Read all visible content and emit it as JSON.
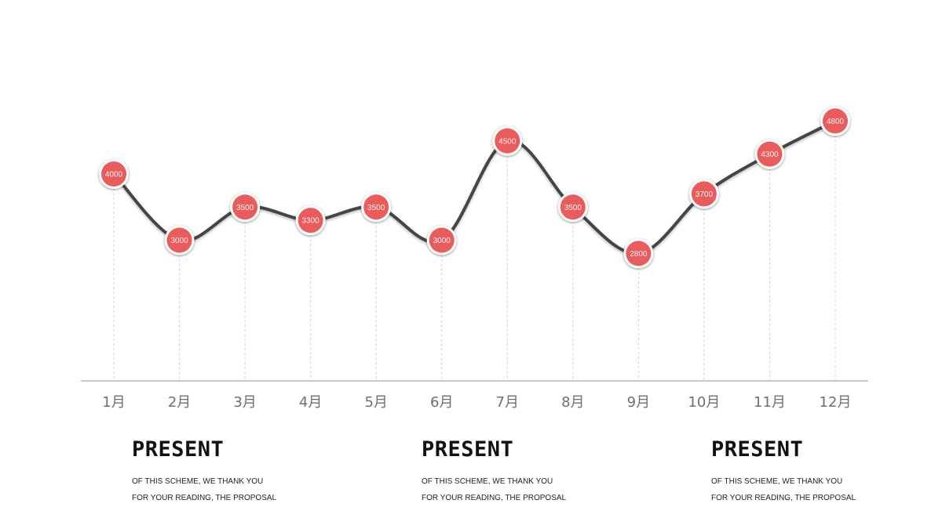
{
  "chart_data": {
    "type": "line",
    "categories": [
      "1月",
      "2月",
      "3月",
      "4月",
      "5月",
      "6月",
      "7月",
      "8月",
      "9月",
      "10月",
      "11月",
      "12月"
    ],
    "series": [
      {
        "values": [
          4000,
          3000,
          3500,
          3300,
          3500,
          3000,
          4500,
          3500,
          2800,
          3700,
          4300,
          4800
        ]
      }
    ],
    "data_labels": [
      "4000",
      "3000",
      "3500",
      "3300",
      "3500",
      "3000",
      "4500",
      "3500",
      "2800",
      "3700",
      "4300",
      "4800"
    ],
    "title": "",
    "xlabel": "",
    "ylabel": "",
    "grid": false,
    "legend": "none",
    "line_color": "#454545",
    "marker_color": "#ea5b5b"
  },
  "info_blocks": [
    {
      "title": "PRESENT",
      "line1": "OF THIS SCHEME, WE THANK YOU",
      "line2": "FOR YOUR READING, THE PROPOSAL"
    },
    {
      "title": "PRESENT",
      "line1": "OF THIS SCHEME, WE THANK YOU",
      "line2": "FOR YOUR READING, THE PROPOSAL"
    },
    {
      "title": "PRESENT",
      "line1": "OF THIS SCHEME, WE THANK YOU",
      "line2": "FOR YOUR READING, THE PROPOSAL"
    }
  ]
}
